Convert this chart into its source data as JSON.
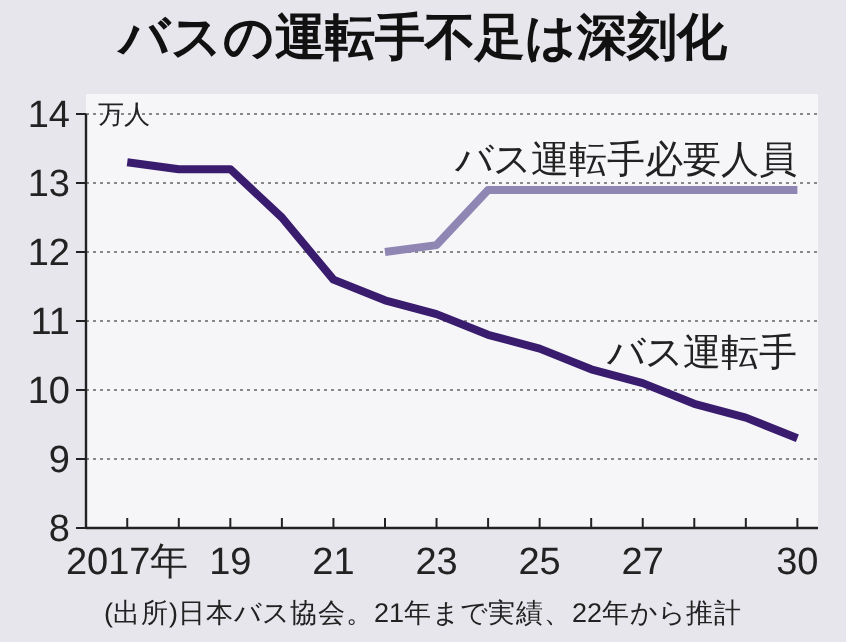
{
  "chart_data": {
    "type": "line",
    "title": "バスの運転手不足は深刻化",
    "ylabel": "万人",
    "annotations": [
      "(出所)日本バス協会。21年まで実績、22年から推計"
    ],
    "x": [
      2017,
      2018,
      2019,
      2020,
      2021,
      2022,
      2023,
      2024,
      2025,
      2026,
      2027,
      2028,
      2029,
      2030
    ],
    "series": [
      {
        "name": "バス運転手",
        "color": "#3a1c6e",
        "values": [
          13.3,
          13.2,
          13.2,
          12.5,
          11.6,
          11.3,
          11.1,
          10.8,
          10.6,
          10.3,
          10.1,
          9.8,
          9.6,
          9.3
        ]
      },
      {
        "name": "バス運転手必要人員",
        "color": "#8f86b3",
        "values": [
          null,
          null,
          null,
          null,
          null,
          12.0,
          12.1,
          12.9,
          12.9,
          12.9,
          12.9,
          12.9,
          12.9,
          12.9
        ]
      }
    ],
    "xlim": [
      2016.2,
      2030.4
    ],
    "xticks": [
      {
        "value": 2017,
        "label": "2017年"
      },
      {
        "value": 2018,
        "label": null
      },
      {
        "value": 2019,
        "label": "19"
      },
      {
        "value": 2020,
        "label": null
      },
      {
        "value": 2021,
        "label": "21"
      },
      {
        "value": 2022,
        "label": null
      },
      {
        "value": 2023,
        "label": "23"
      },
      {
        "value": 2024,
        "label": null
      },
      {
        "value": 2025,
        "label": "25"
      },
      {
        "value": 2026,
        "label": null
      },
      {
        "value": 2027,
        "label": "27"
      },
      {
        "value": 2028,
        "label": null
      },
      {
        "value": 2029,
        "label": null
      },
      {
        "value": 2030,
        "label": "30"
      }
    ],
    "ylim": [
      8,
      14
    ],
    "yticks": [
      8,
      9,
      10,
      11,
      12,
      13,
      14
    ],
    "grid": "y",
    "line_style": "solid",
    "marker": "none"
  }
}
